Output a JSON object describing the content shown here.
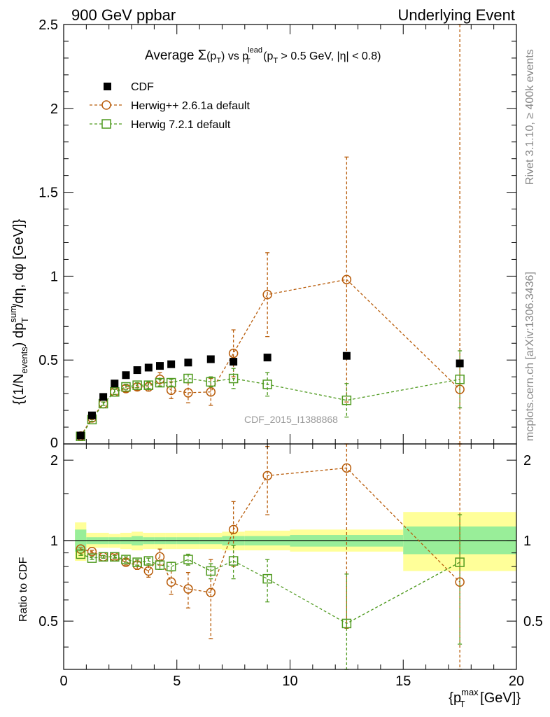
{
  "header": {
    "left": "900 GeV ppbar",
    "right": "Underlying Event"
  },
  "side_labels": {
    "rivet": "Rivet 3.1.10, ≥ 400k events",
    "mcplots": "mcplots.cern.ch [arXiv:1306.3436]"
  },
  "watermark": "CDF_2015_I1388868",
  "colors": {
    "cdf": "#000000",
    "herwigpp": "#b85c0a",
    "herwig7": "#4f9a1f",
    "band_inner": "#99ee99",
    "band_outer": "#ffff99"
  },
  "chart_data": [
    {
      "type": "scatter",
      "panel": "main",
      "title": "Average Σ(p_T) vs p_T^lead (p_T > 0.5 GeV, |η| < 0.8)",
      "title_parts": {
        "prefix": "Average ",
        "sigma": "Σ",
        "pt": "p",
        "pt_sub": "T",
        "vs": " vs p",
        "lead_sup": "lead",
        "lead_sub": "T",
        "cuts_a": " (p",
        "cuts_a_sub": "T",
        "cuts_b": " > 0.5 GeV, |η| < 0.8)"
      },
      "ylabel": "{(1/N_events) dp_T^sum/dη, dφ [GeV]}",
      "ylabel_parts": {
        "a": "{(1/N",
        "a_sub": "events",
        "b": ") dp",
        "b_sup": "sum",
        "b_sub": "T",
        "c": "/dη, dφ [GeV]}"
      },
      "xlim": [
        0,
        20
      ],
      "ylim": [
        0,
        2.5
      ],
      "yticks": [
        0,
        0.5,
        1,
        1.5,
        2,
        2.5
      ],
      "ytick_labels": [
        "0",
        "0.5",
        "1",
        "1.5",
        "2",
        "2.5"
      ],
      "legend_position": "top-left",
      "series": [
        {
          "name": "CDF",
          "marker": "square-filled",
          "x": [
            0.75,
            1.25,
            1.75,
            2.25,
            2.75,
            3.25,
            3.75,
            4.25,
            4.75,
            5.5,
            6.5,
            7.5,
            9.0,
            12.5,
            17.5
          ],
          "y": [
            0.05,
            0.17,
            0.28,
            0.36,
            0.41,
            0.44,
            0.455,
            0.465,
            0.475,
            0.485,
            0.505,
            0.49,
            0.515,
            0.525,
            0.48
          ],
          "yerr": []
        },
        {
          "name": "Herwig++ 2.6.1a default",
          "marker": "circle-open",
          "x": [
            0.75,
            1.25,
            1.75,
            2.25,
            2.75,
            3.25,
            3.75,
            4.25,
            4.75,
            5.5,
            6.5,
            7.5,
            9.0,
            12.5,
            17.5
          ],
          "y": [
            0.047,
            0.155,
            0.24,
            0.31,
            0.33,
            0.34,
            0.34,
            0.385,
            0.32,
            0.305,
            0.31,
            0.54,
            0.89,
            0.98,
            0.325
          ],
          "yerr": [
            0.005,
            0.01,
            0.01,
            0.015,
            0.02,
            0.02,
            0.025,
            0.04,
            0.05,
            0.06,
            0.08,
            0.14,
            0.25,
            0.73,
            2.3
          ]
        },
        {
          "name": "Herwig 7.2.1 default",
          "marker": "square-open",
          "x": [
            0.75,
            1.25,
            1.75,
            2.25,
            2.75,
            3.25,
            3.75,
            4.25,
            4.75,
            5.5,
            6.5,
            7.5,
            9.0,
            12.5,
            17.5
          ],
          "y": [
            0.045,
            0.145,
            0.24,
            0.31,
            0.34,
            0.35,
            0.35,
            0.365,
            0.365,
            0.39,
            0.37,
            0.39,
            0.355,
            0.26,
            0.385
          ],
          "yerr": [
            0.005,
            0.01,
            0.01,
            0.015,
            0.015,
            0.015,
            0.02,
            0.02,
            0.02,
            0.025,
            0.03,
            0.06,
            0.07,
            0.1,
            0.17
          ]
        }
      ]
    },
    {
      "type": "scatter",
      "panel": "ratio",
      "xlabel": "{p_T^max [GeV]}",
      "xlabel_parts": {
        "a": "{p",
        "sup": "max",
        "sub": "T",
        "b": " [GeV]}"
      },
      "ylabel": "Ratio to CDF",
      "xlim": [
        0,
        20
      ],
      "ylim": [
        0.33,
        2.3
      ],
      "xticks": [
        0,
        5,
        10,
        15,
        20
      ],
      "xtick_labels": [
        "0",
        "5",
        "10",
        "15",
        "20"
      ],
      "yticks": [
        0.5,
        1,
        2
      ],
      "ytick_labels": [
        "0.5",
        "1",
        "2"
      ],
      "bands": {
        "edges": [
          0.5,
          1.0,
          1.5,
          2.0,
          2.5,
          3.0,
          3.5,
          4.0,
          4.5,
          5.0,
          6.0,
          7.0,
          8.0,
          10.0,
          15.0,
          20.0
        ],
        "inner_lo": [
          0.91,
          0.97,
          0.97,
          0.97,
          0.97,
          0.96,
          0.97,
          0.97,
          0.97,
          0.97,
          0.97,
          0.96,
          0.96,
          0.95,
          0.89
        ],
        "inner_hi": [
          1.1,
          1.03,
          1.03,
          1.03,
          1.03,
          1.04,
          1.03,
          1.03,
          1.03,
          1.03,
          1.03,
          1.04,
          1.04,
          1.05,
          1.13
        ],
        "outer_lo": [
          0.84,
          0.94,
          0.94,
          0.94,
          0.93,
          0.92,
          0.93,
          0.93,
          0.93,
          0.93,
          0.93,
          0.92,
          0.92,
          0.91,
          0.77
        ],
        "outer_hi": [
          1.17,
          1.07,
          1.07,
          1.06,
          1.07,
          1.08,
          1.07,
          1.07,
          1.07,
          1.07,
          1.07,
          1.08,
          1.09,
          1.1,
          1.28
        ]
      },
      "series": [
        {
          "name": "Herwig++ 2.6.1a default",
          "x": [
            0.75,
            1.25,
            1.75,
            2.25,
            2.75,
            3.25,
            3.75,
            4.25,
            4.75,
            5.5,
            6.5,
            7.5,
            9.0,
            12.5,
            17.5
          ],
          "y": [
            0.93,
            0.91,
            0.87,
            0.87,
            0.83,
            0.81,
            0.77,
            0.87,
            0.7,
            0.66,
            0.64,
            1.1,
            1.75,
            1.87,
            0.7
          ],
          "yerr": [
            0.01,
            0.01,
            0.01,
            0.02,
            0.02,
            0.03,
            0.04,
            0.06,
            0.07,
            0.1,
            0.21,
            0.3,
            0.5,
            1.4,
            4.8
          ]
        },
        {
          "name": "Herwig 7.2.1 default",
          "x": [
            0.75,
            1.25,
            1.75,
            2.25,
            2.75,
            3.25,
            3.75,
            4.25,
            4.75,
            5.5,
            6.5,
            7.5,
            9.0,
            12.5,
            17.5
          ],
          "y": [
            0.89,
            0.86,
            0.87,
            0.87,
            0.85,
            0.83,
            0.84,
            0.81,
            0.8,
            0.85,
            0.77,
            0.84,
            0.72,
            0.49,
            0.83
          ],
          "yerr": [
            0.01,
            0.01,
            0.01,
            0.01,
            0.02,
            0.02,
            0.02,
            0.03,
            0.03,
            0.04,
            0.05,
            0.12,
            0.13,
            0.26,
            0.42
          ]
        }
      ]
    }
  ]
}
